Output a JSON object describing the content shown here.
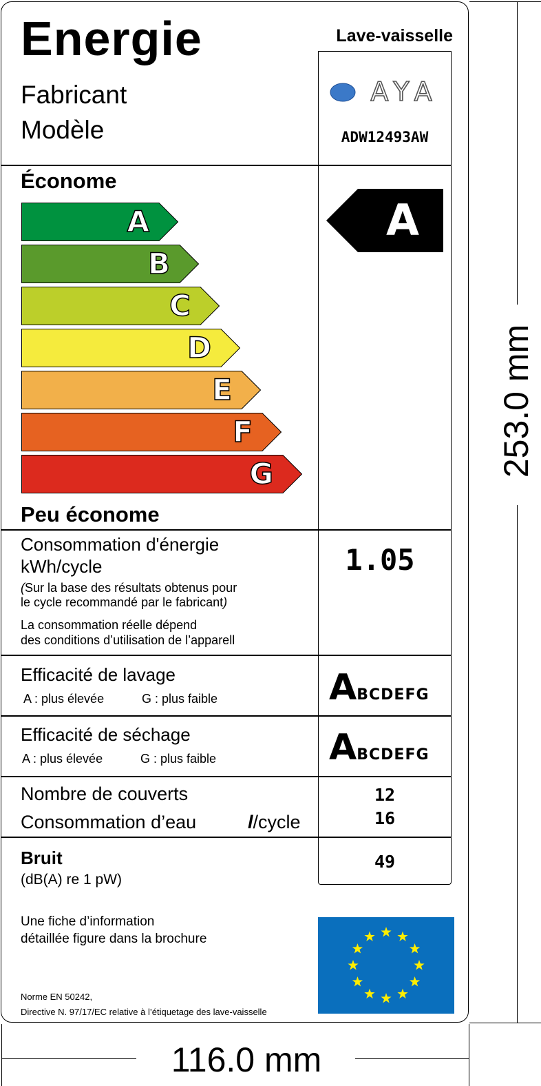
{
  "header": {
    "title": "Energie",
    "manufacturer_label": "Fabricant",
    "model_label": "Modèle",
    "appliance_type": "Lave-vaisselle",
    "brand_logo_text": "AYA",
    "model_number": "ADW12493AW"
  },
  "efficiency": {
    "top_label": "Économe",
    "bottom_label": "Peu économe",
    "classes": [
      {
        "letter": "A",
        "color": "#00923f"
      },
      {
        "letter": "B",
        "color": "#5a9a2c"
      },
      {
        "letter": "C",
        "color": "#bccf2a"
      },
      {
        "letter": "D",
        "color": "#f5eb3d"
      },
      {
        "letter": "E",
        "color": "#f2b04a"
      },
      {
        "letter": "F",
        "color": "#e66221"
      },
      {
        "letter": "G",
        "color": "#dc2a1e"
      }
    ],
    "rating": "A",
    "rating_level": 1
  },
  "energy": {
    "title": "Consommation d'énergie",
    "unit": "kWh/cycle",
    "note_line1_italic": "(",
    "note_line1": "Sur la base des résultats obtenus pour",
    "note_line2": "le cycle recommandé par le fabricant",
    "note_line2_italic": ")",
    "note_line3": "La consommation réelle dépend",
    "note_line4": "des conditions d’utilisation de l’apparell",
    "value": "1.05"
  },
  "washing": {
    "title": "Efficacité de lavage",
    "high": "A : plus élevée",
    "low": "G : plus faible",
    "grade": "A",
    "rest": "BCDEFG"
  },
  "drying": {
    "title": "Efficacité de séchage",
    "high": "A : plus élevée",
    "low": "G : plus faible",
    "grade": "A",
    "rest": "BCDEFG"
  },
  "capacity": {
    "place_settings_label": "Nombre de couverts",
    "place_settings_value": "12",
    "water_label": "Consommation d’eau",
    "water_unit_symbol": "l",
    "water_unit": "/cycle",
    "water_value": "16"
  },
  "noise": {
    "title": "Bruit",
    "unit": "(dB(A) re 1 pW)",
    "value": "49"
  },
  "footer": {
    "info_line1": "Une fiche d’information",
    "info_line2": "détaillée figure dans la brochure",
    "norm_line1": "Norme EN 50242,",
    "norm_line2": "Directive N. 97/17/EC relative à l’étiquetage des lave-vaisselle"
  },
  "eu_flag": {
    "background": "#0a6fbd",
    "star_color": "#ffed00",
    "stars": 12
  },
  "dimensions": {
    "height": "253.0 mm",
    "width": "116.0 mm"
  }
}
